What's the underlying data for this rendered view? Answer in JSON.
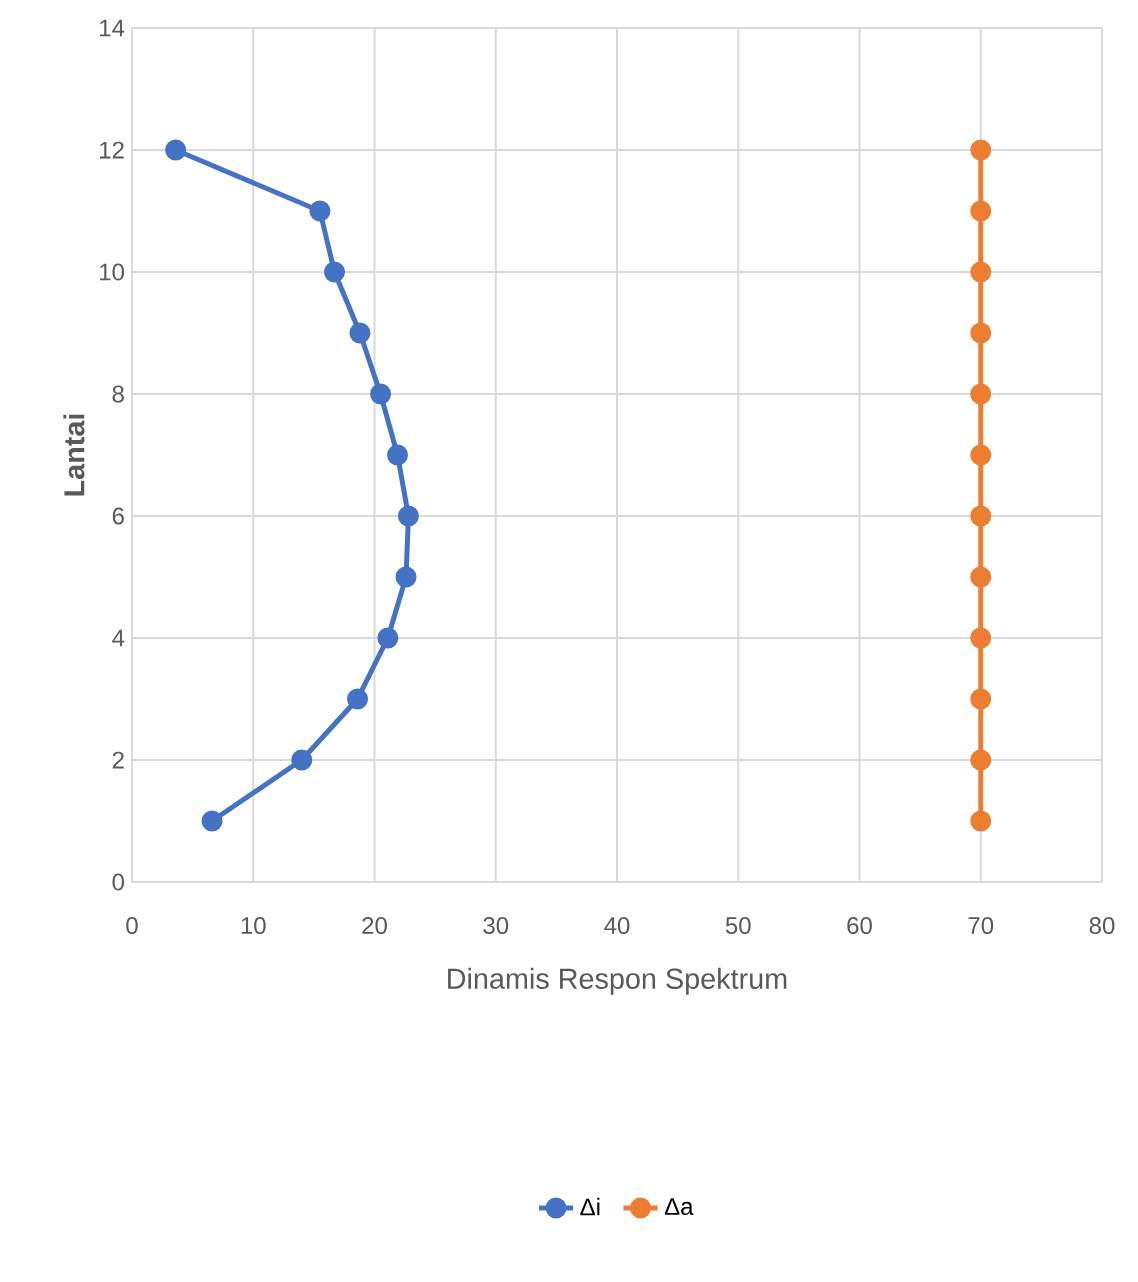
{
  "chart_data": {
    "type": "line",
    "xlabel": "Dinamis Respon Spektrum",
    "ylabel": "Lantai",
    "xlim": [
      0,
      80
    ],
    "ylim": [
      0,
      14
    ],
    "xticks": [
      0,
      10,
      20,
      30,
      40,
      50,
      60,
      70,
      80
    ],
    "yticks": [
      0,
      2,
      4,
      6,
      8,
      10,
      12,
      14
    ],
    "grid": true,
    "legend": "bottom",
    "marker": "circle",
    "line_style": "solid",
    "series": [
      {
        "name": "Δi",
        "color": "#4472c4",
        "x": [
          6.6,
          14.0,
          18.6,
          21.1,
          22.6,
          22.8,
          21.9,
          20.5,
          18.8,
          16.7,
          15.5,
          3.6
        ],
        "values": [
          1,
          2,
          3,
          4,
          5,
          6,
          7,
          8,
          9,
          10,
          11,
          12
        ]
      },
      {
        "name": "Δa",
        "color": "#ed7d31",
        "x": [
          70,
          70,
          70,
          70,
          70,
          70,
          70,
          70,
          70,
          70,
          70,
          70
        ],
        "values": [
          1,
          2,
          3,
          4,
          5,
          6,
          7,
          8,
          9,
          10,
          11,
          12
        ]
      }
    ]
  }
}
